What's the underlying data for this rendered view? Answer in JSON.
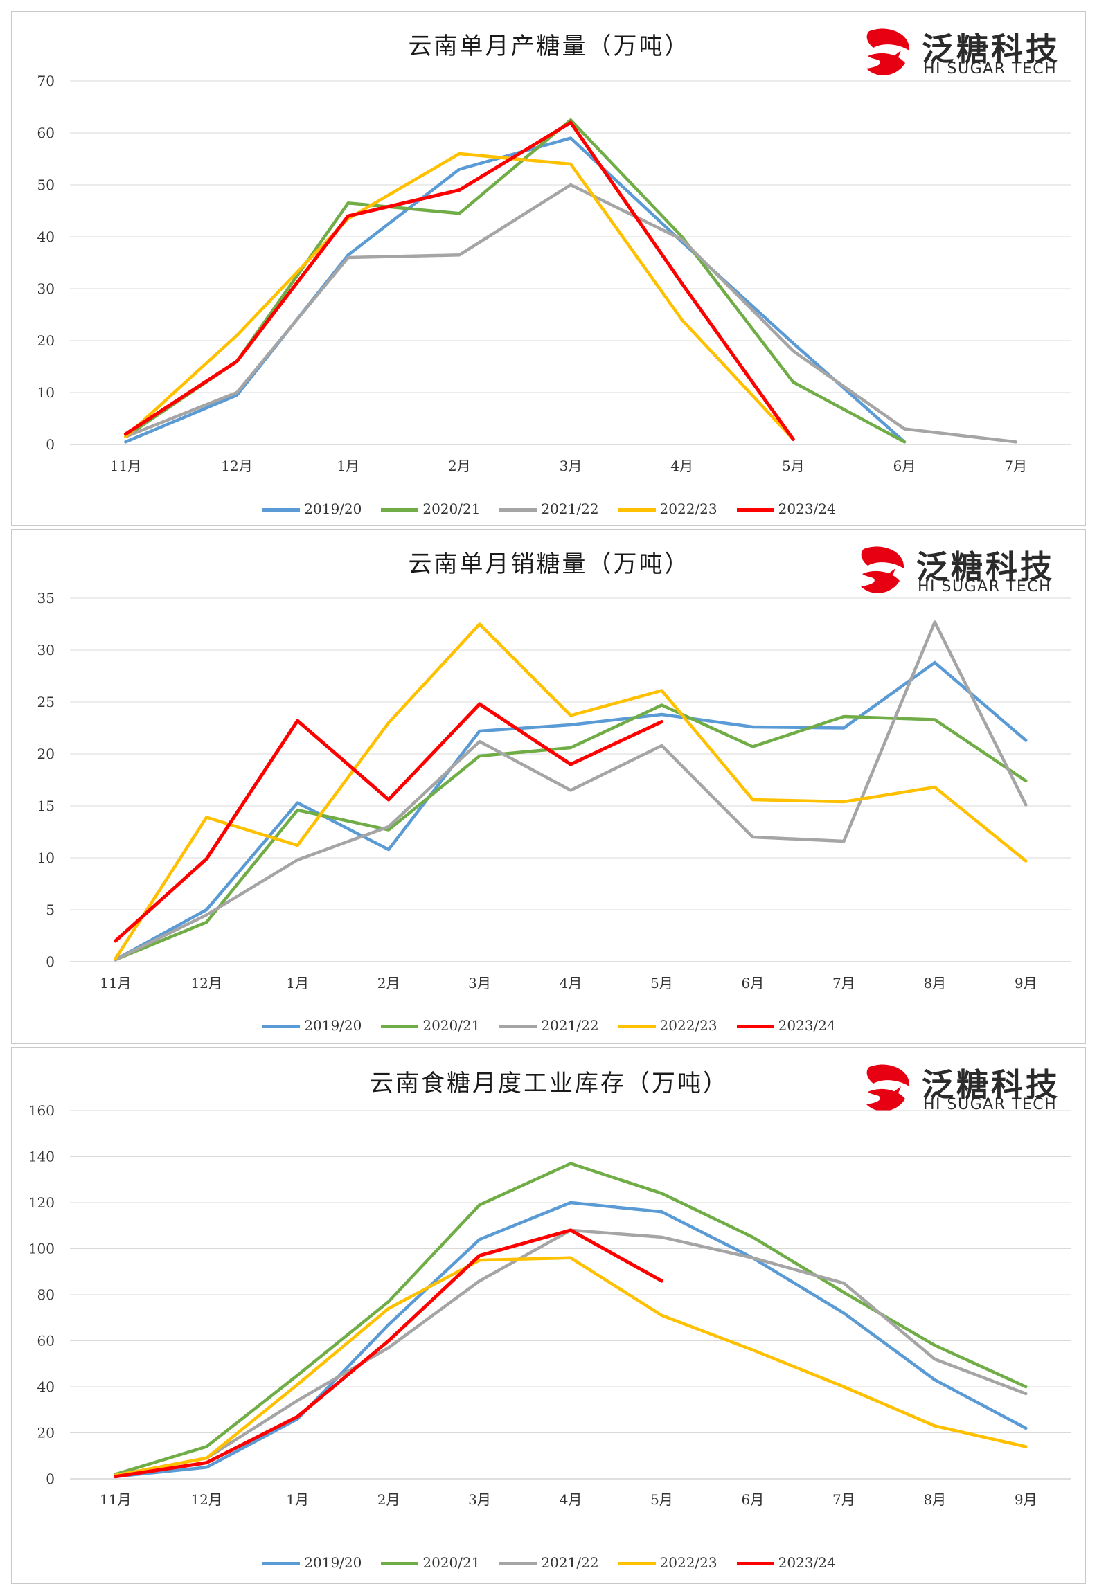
{
  "colors": {
    "2019/20": "#5b9bd5",
    "2020/21": "#70ad47",
    "2021/22": "#a5a5a5",
    "2022/23": "#ffc000",
    "2023/24": "#ff0000"
  },
  "logo": {
    "cn": "泛糖科技",
    "en": "HI SUGAR TECH",
    "icon": "hi-sugar-logo-icon"
  },
  "legend": [
    "2019/20",
    "2020/21",
    "2021/22",
    "2022/23",
    "2023/24"
  ],
  "chart_data": [
    {
      "type": "line",
      "title": "云南单月产糖量（万吨）",
      "categories": [
        "11月",
        "12月",
        "1月",
        "2月",
        "3月",
        "4月",
        "5月",
        "6月",
        "7月"
      ],
      "ylim": [
        0,
        70
      ],
      "yticks": [
        0,
        10,
        20,
        30,
        40,
        50,
        60,
        70
      ],
      "grid": true,
      "legend_position": "bottom",
      "series": [
        {
          "name": "2019/20",
          "values": [
            0.5,
            9.5,
            36.5,
            53,
            59,
            39,
            19.5,
            0.5,
            null
          ]
        },
        {
          "name": "2020/21",
          "values": [
            1.5,
            16,
            46.5,
            44.5,
            62.5,
            40,
            12,
            0.5,
            null
          ]
        },
        {
          "name": "2021/22",
          "values": [
            1.5,
            10,
            36,
            36.5,
            50,
            39.5,
            18,
            3,
            0.5
          ]
        },
        {
          "name": "2022/23",
          "values": [
            1.5,
            21,
            43.5,
            56,
            54,
            24,
            1,
            null,
            null
          ]
        },
        {
          "name": "2023/24",
          "values": [
            2,
            16,
            44,
            49,
            62,
            31,
            1,
            null,
            null
          ]
        }
      ]
    },
    {
      "type": "line",
      "title": "云南单月销糖量（万吨）",
      "categories": [
        "11月",
        "12月",
        "1月",
        "2月",
        "3月",
        "4月",
        "5月",
        "6月",
        "7月",
        "8月",
        "9月"
      ],
      "ylim": [
        0,
        35
      ],
      "yticks": [
        0,
        5,
        10,
        15,
        20,
        25,
        30,
        35
      ],
      "grid": true,
      "legend_position": "bottom",
      "series": [
        {
          "name": "2019/20",
          "values": [
            0.2,
            5,
            15.3,
            10.8,
            22.2,
            22.8,
            23.8,
            22.6,
            22.5,
            28.8,
            21.3
          ]
        },
        {
          "name": "2020/21",
          "values": [
            0.2,
            3.8,
            14.6,
            12.7,
            19.8,
            20.6,
            24.7,
            20.7,
            23.6,
            23.3,
            17.4
          ]
        },
        {
          "name": "2021/22",
          "values": [
            0.2,
            4.5,
            9.8,
            13,
            21.2,
            16.5,
            20.8,
            12,
            11.6,
            32.7,
            15.1
          ]
        },
        {
          "name": "2022/23",
          "values": [
            0.3,
            13.9,
            11.2,
            23,
            32.5,
            23.7,
            26.1,
            15.6,
            15.4,
            16.8,
            9.7
          ]
        },
        {
          "name": "2023/24",
          "values": [
            2,
            9.9,
            23.2,
            15.6,
            24.8,
            19,
            23.1,
            null,
            null,
            null,
            null
          ]
        }
      ]
    },
    {
      "type": "line",
      "title": "云南食糖月度工业库存（万吨）",
      "categories": [
        "11月",
        "12月",
        "1月",
        "2月",
        "3月",
        "4月",
        "5月",
        "6月",
        "7月",
        "8月",
        "9月"
      ],
      "ylim": [
        0,
        160
      ],
      "yticks": [
        0,
        20,
        40,
        60,
        80,
        100,
        120,
        140,
        160
      ],
      "grid": true,
      "legend_position": "bottom",
      "series": [
        {
          "name": "2019/20",
          "values": [
            1,
            5,
            26,
            67,
            104,
            120,
            116,
            96,
            72,
            43,
            22
          ]
        },
        {
          "name": "2020/21",
          "values": [
            2,
            14,
            45,
            77,
            119,
            137,
            124,
            105,
            81,
            58,
            40
          ]
        },
        {
          "name": "2021/22",
          "values": [
            1.5,
            9,
            34,
            57,
            86,
            108,
            105,
            96,
            85,
            52,
            37
          ]
        },
        {
          "name": "2022/23",
          "values": [
            1.5,
            9,
            41,
            74,
            95,
            96,
            71,
            56,
            40,
            23,
            14
          ]
        },
        {
          "name": "2023/24",
          "values": [
            1,
            7,
            27,
            60,
            97,
            108,
            86,
            null,
            null,
            null,
            null
          ]
        }
      ]
    }
  ]
}
